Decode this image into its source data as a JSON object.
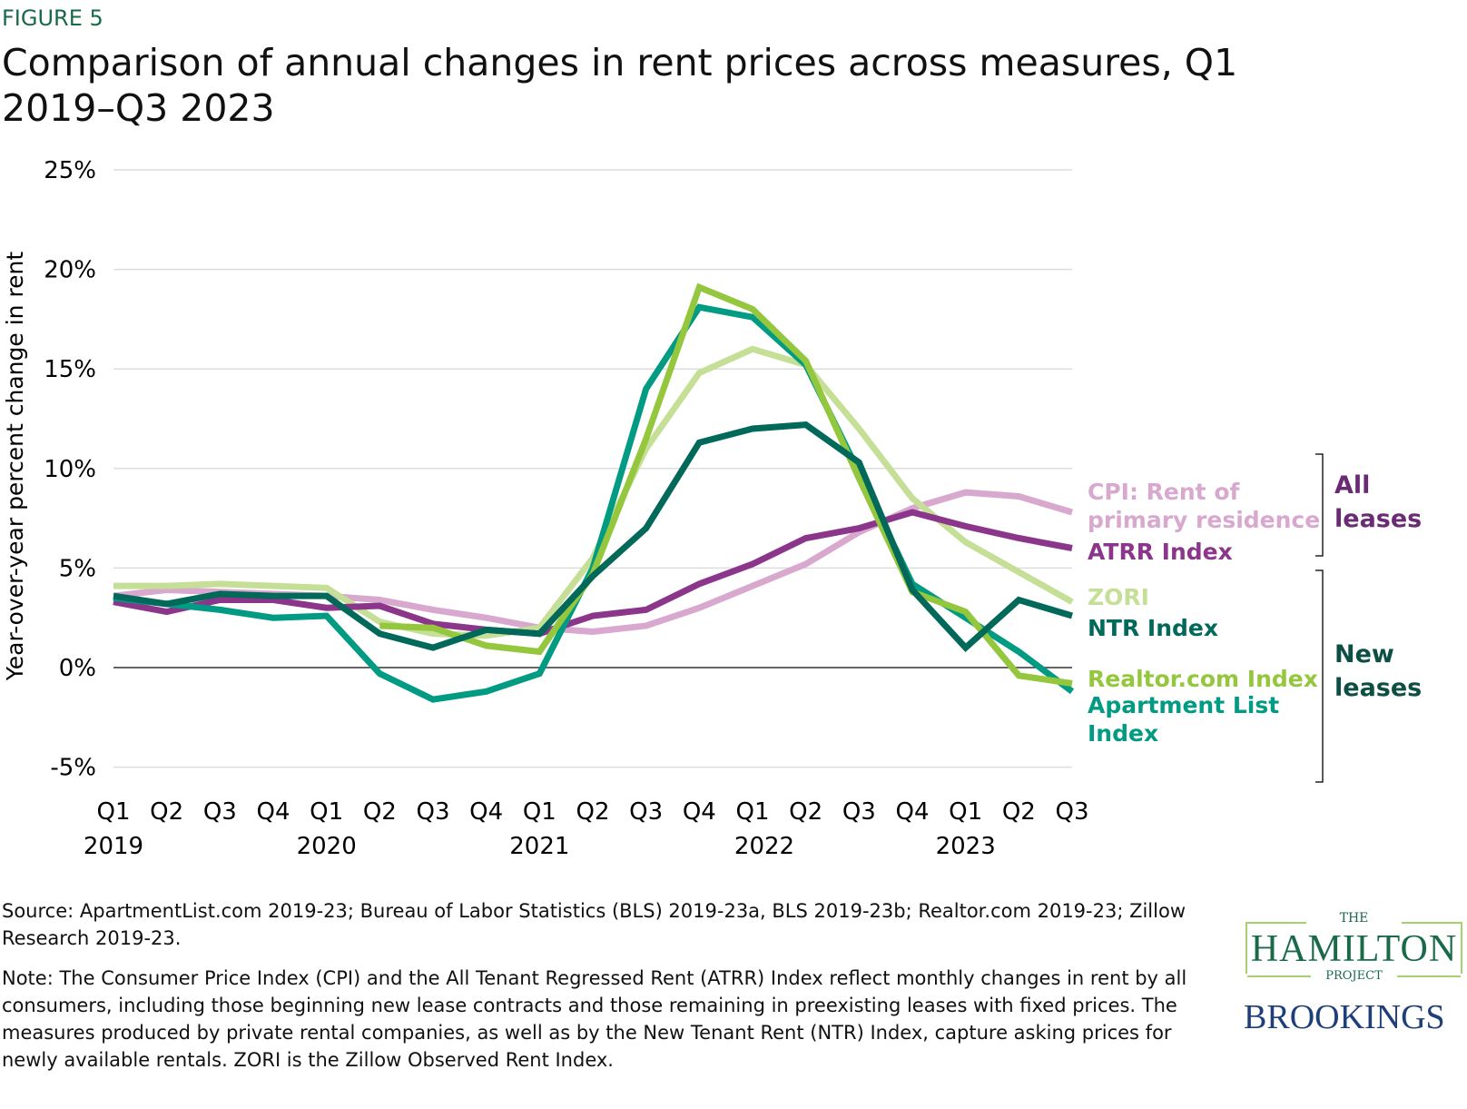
{
  "figure_label": "FIGURE 5",
  "title": "Comparison of annual changes in rent prices across measures, Q1 2019–Q3 2023",
  "source": "Source: ApartmentList.com 2019-23; Bureau of Labor Statistics (BLS) 2019-23a, BLS 2019-23b; Realtor.com 2019-23; Zillow Research 2019-23.",
  "note": "Note: The Consumer Price Index (CPI) and the All Tenant Regressed Rent (ATRR) Index reflect monthly changes in rent by all consumers, including those beginning new lease contracts and those remaining in preexisting leases with fixed prices. The measures produced by private rental companies, as well as by the New Tenant Rent (NTR) Index, capture asking prices for newly available rentals. ZORI is the Zillow Observed Rent Index.",
  "logos": {
    "hamilton_the": "THE",
    "hamilton": "HAMILTON",
    "hamilton_project": "PROJECT",
    "brookings": "BROOKINGS"
  },
  "chart_data": {
    "type": "line",
    "ylabel": "Year-over-year percent change in rent",
    "ylim": [
      -5,
      25
    ],
    "yticks": [
      "25%",
      "20%",
      "15%",
      "10%",
      "5%",
      "0%",
      "-5%"
    ],
    "ytick_values": [
      25,
      20,
      15,
      10,
      5,
      0,
      -5
    ],
    "grid": true,
    "x_quarters": [
      "Q1",
      "Q2",
      "Q3",
      "Q4",
      "Q1",
      "Q2",
      "Q3",
      "Q4",
      "Q1",
      "Q2",
      "Q3",
      "Q4",
      "Q1",
      "Q2",
      "Q3",
      "Q4",
      "Q1",
      "Q2",
      "Q3"
    ],
    "x_years": [
      {
        "label": "2019",
        "index": 0
      },
      {
        "label": "2020",
        "index": 4
      },
      {
        "label": "2021",
        "index": 8
      },
      {
        "label": "2022",
        "index": 12
      },
      {
        "label": "2023",
        "index": 16
      }
    ],
    "groups": [
      {
        "label": "All leases",
        "color": "#6b2a74"
      },
      {
        "label": "New leases",
        "color": "#0d4f44"
      }
    ],
    "series": [
      {
        "name": "CPI: Rent of primary residence",
        "color": "#d9a8cf",
        "values": [
          3.6,
          3.9,
          3.8,
          3.7,
          3.6,
          3.4,
          2.9,
          2.5,
          2.0,
          1.8,
          2.1,
          3.0,
          4.1,
          5.2,
          6.8,
          8.0,
          8.8,
          8.6,
          7.8
        ]
      },
      {
        "name": "ZORI",
        "color": "#c5df96",
        "values": [
          4.1,
          4.1,
          4.2,
          4.1,
          4.0,
          2.3,
          1.7,
          1.6,
          2.0,
          5.5,
          11.0,
          14.8,
          16.0,
          15.2,
          12.0,
          8.5,
          6.3,
          4.8,
          3.3
        ]
      },
      {
        "name": "ATRR Index",
        "color": "#8b358b",
        "values": [
          3.3,
          2.8,
          3.4,
          3.4,
          3.0,
          3.1,
          2.2,
          1.9,
          1.7,
          2.6,
          2.9,
          4.2,
          5.2,
          6.5,
          7.0,
          7.8,
          7.1,
          6.5,
          6.0
        ]
      },
      {
        "name": "Apartment List Index",
        "color": "#009b82",
        "values": [
          3.5,
          3.2,
          2.9,
          2.5,
          2.6,
          -0.3,
          -1.6,
          -1.2,
          -0.3,
          5.0,
          14.0,
          18.1,
          17.6,
          15.2,
          9.8,
          4.2,
          2.5,
          0.8,
          -1.2
        ]
      },
      {
        "name": "Realtor.com Index",
        "color": "#94c73d",
        "values": [
          null,
          null,
          null,
          null,
          null,
          2.1,
          2.0,
          1.1,
          0.8,
          4.7,
          11.5,
          19.1,
          18.0,
          15.4,
          9.5,
          3.8,
          2.8,
          -0.4,
          -0.8
        ]
      },
      {
        "name": "NTR Index",
        "color": "#00695a",
        "values": [
          3.6,
          3.2,
          3.7,
          3.6,
          3.6,
          1.7,
          1.0,
          1.9,
          1.7,
          4.6,
          7.0,
          11.3,
          12.0,
          12.2,
          10.3,
          3.9,
          1.0,
          3.4,
          2.6
        ]
      }
    ]
  }
}
